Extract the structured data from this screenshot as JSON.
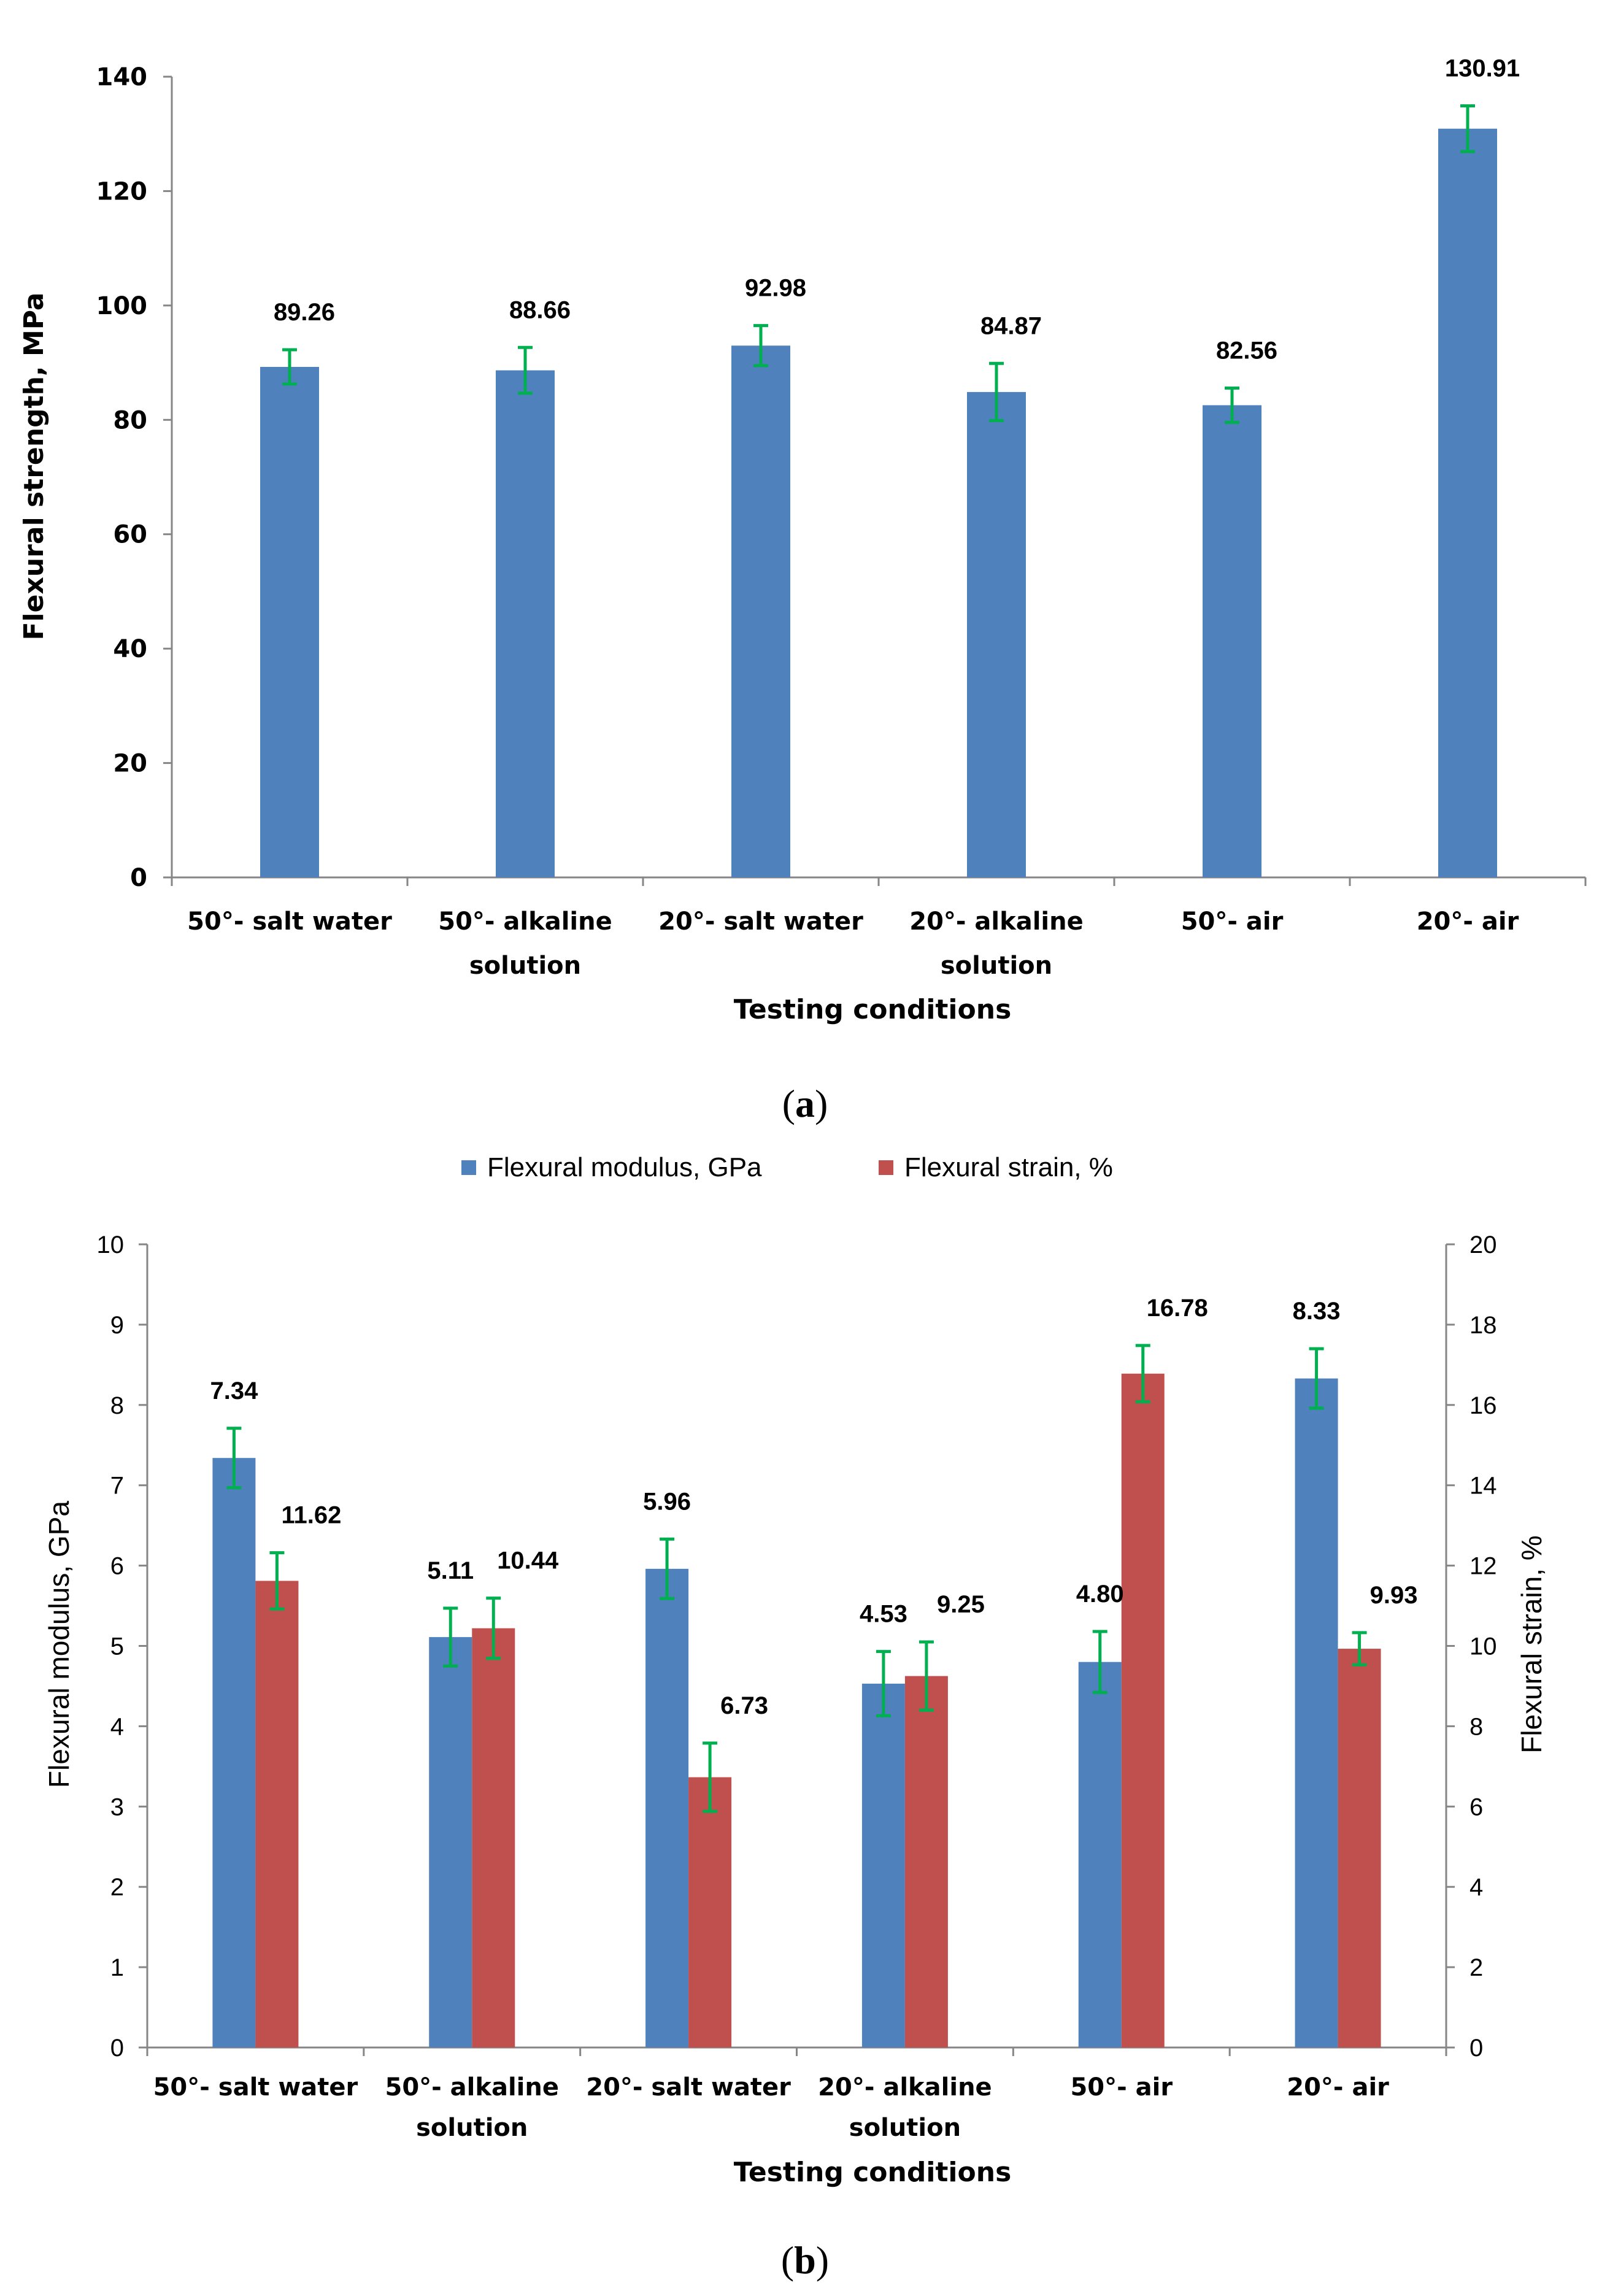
{
  "captions": {
    "a_open": "(",
    "a_letter": "a",
    "a_close": ")",
    "b_open": "(",
    "b_letter": "b",
    "b_close": ")"
  },
  "chart_data": [
    {
      "id": "a",
      "type": "bar",
      "categories": [
        "50°- salt water",
        "50°- alkaline solution",
        "20°- salt water",
        "20°- alkaline solution",
        "50°- air",
        "20°- air"
      ],
      "category_lines": [
        [
          "50°- salt water"
        ],
        [
          "50°- alkaline",
          "solution"
        ],
        [
          "20°- salt water"
        ],
        [
          "20°- alkaline",
          "solution"
        ],
        [
          "50°- air"
        ],
        [
          "20°- air"
        ]
      ],
      "values": [
        89.26,
        88.66,
        92.98,
        84.87,
        82.56,
        130.91
      ],
      "data_labels": [
        "89.26",
        "88.66",
        "92.98",
        "84.87",
        "82.56",
        "130.91"
      ],
      "errors": [
        3.0,
        4.0,
        3.5,
        5.0,
        3.0,
        4.0
      ],
      "xlabel": "Testing conditions",
      "ylabel": "Flexural strength, MPa",
      "ylim": [
        0,
        140
      ],
      "yticks": [
        0,
        20,
        40,
        60,
        80,
        100,
        120,
        140
      ],
      "grid": false,
      "colors": {
        "bar": "#4f81bd",
        "error": "#00b050"
      }
    },
    {
      "id": "b",
      "type": "bar",
      "categories": [
        "50°- salt water",
        "50°- alkaline solution",
        "20°- salt water",
        "20°- alkaline solution",
        "50°- air",
        "20°- air"
      ],
      "category_lines": [
        [
          "50°- salt water"
        ],
        [
          "50°- alkaline",
          "solution"
        ],
        [
          "20°- salt water"
        ],
        [
          "20°- alkaline",
          "solution"
        ],
        [
          "50°- air"
        ],
        [
          "20°- air"
        ]
      ],
      "series": [
        {
          "name": "Flexural modulus, GPa",
          "axis": "left",
          "values": [
            7.34,
            5.11,
            5.96,
            4.53,
            4.8,
            8.33
          ],
          "data_labels": [
            "7.34",
            "5.11",
            "5.96",
            "4.53",
            "4.80",
            "8.33"
          ],
          "errors": [
            0.37,
            0.36,
            0.37,
            0.4,
            0.38,
            0.37
          ],
          "color": "#4f81bd"
        },
        {
          "name": "Flexural strain, %",
          "axis": "right",
          "values": [
            11.62,
            10.44,
            6.73,
            9.25,
            16.78,
            9.93
          ],
          "data_labels": [
            "11.62",
            "10.44",
            "6.73",
            "9.25",
            "16.78",
            "9.93"
          ],
          "errors": [
            0.7,
            0.75,
            0.85,
            0.85,
            0.7,
            0.4
          ],
          "color": "#c0504d"
        }
      ],
      "xlabel": "Testing conditions",
      "ylabel_left": "Flexural modulus, GPa",
      "ylabel_right": "Flexural strain, %",
      "ylim_left": [
        0,
        10
      ],
      "ylim_right": [
        0,
        20
      ],
      "yticks_left": [
        0,
        1,
        2,
        3,
        4,
        5,
        6,
        7,
        8,
        9,
        10
      ],
      "yticks_right": [
        0,
        2,
        4,
        6,
        8,
        10,
        12,
        14,
        16,
        18,
        20
      ],
      "legend_position": "top-center",
      "grid": false,
      "error_color": "#00b050"
    }
  ]
}
